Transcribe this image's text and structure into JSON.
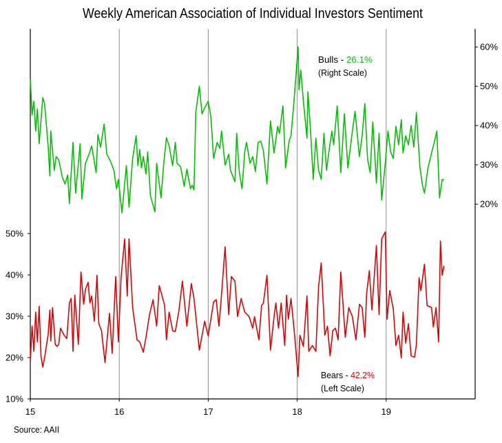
{
  "chart_data": {
    "type": "line",
    "title": "Weekly American Association of Individual  Investors Sentiment",
    "source": "Source: AAII",
    "grid": "vertical lines at each year",
    "x_axis": {
      "range": [
        15,
        20
      ],
      "ticks": [
        "15",
        "16",
        "17",
        "18",
        "19"
      ]
    },
    "y_axis_left": {
      "range": [
        10,
        99.5
      ],
      "ticks": [
        "10%",
        "20%",
        "30%",
        "40%",
        "50%"
      ],
      "tick_values": [
        10,
        20,
        30,
        40,
        50
      ]
    },
    "y_axis_right": {
      "range": [
        -29.6,
        64.6
      ],
      "ticks": [
        "20%",
        "30%",
        "40%",
        "50%",
        "60%"
      ],
      "tick_values": [
        20,
        30,
        40,
        50,
        60
      ]
    },
    "series": [
      {
        "name": "Bulls",
        "label": "Bulls - ",
        "latest": "26.1%",
        "scale_note": "(Right Scale)",
        "axis": "right",
        "color": "#00c000",
        "points": [
          [
            15.0,
            51.8
          ],
          [
            15.02,
            42.7
          ],
          [
            15.04,
            46.2
          ],
          [
            15.06,
            38.6
          ],
          [
            15.08,
            44.2
          ],
          [
            15.1,
            35.4
          ],
          [
            15.14,
            47.1
          ],
          [
            15.16,
            45.6
          ],
          [
            15.2,
            35.1
          ],
          [
            15.22,
            27.2
          ],
          [
            15.23,
            38.6
          ],
          [
            15.27,
            28.6
          ],
          [
            15.29,
            32.1
          ],
          [
            15.32,
            31.3
          ],
          [
            15.36,
            26.9
          ],
          [
            15.39,
            25.1
          ],
          [
            15.42,
            27.4
          ],
          [
            15.44,
            20.1
          ],
          [
            15.48,
            35.7
          ],
          [
            15.51,
            22.8
          ],
          [
            15.56,
            35.4
          ],
          [
            15.58,
            21.3
          ],
          [
            15.62,
            30.4
          ],
          [
            15.66,
            32.7
          ],
          [
            15.69,
            34.8
          ],
          [
            15.74,
            28.0
          ],
          [
            15.76,
            37.7
          ],
          [
            15.79,
            34.5
          ],
          [
            15.83,
            40.4
          ],
          [
            15.86,
            32.7
          ],
          [
            15.9,
            31.0
          ],
          [
            15.94,
            28.6
          ],
          [
            15.97,
            23.9
          ],
          [
            15.99,
            26.3
          ],
          [
            16.03,
            17.8
          ],
          [
            16.08,
            29.8
          ],
          [
            16.11,
            19.2
          ],
          [
            16.15,
            31.6
          ],
          [
            16.19,
            37.4
          ],
          [
            16.21,
            29.8
          ],
          [
            16.23,
            33.9
          ],
          [
            16.25,
            29.2
          ],
          [
            16.27,
            32.1
          ],
          [
            16.3,
            27.7
          ],
          [
            16.32,
            33.3
          ],
          [
            16.35,
            22.2
          ],
          [
            16.4,
            18.0
          ],
          [
            16.42,
            30.4
          ],
          [
            16.47,
            21.6
          ],
          [
            16.5,
            30.4
          ],
          [
            16.53,
            36.9
          ],
          [
            16.56,
            34.8
          ],
          [
            16.6,
            29.8
          ],
          [
            16.63,
            35.7
          ],
          [
            16.65,
            30.4
          ],
          [
            16.69,
            29.5
          ],
          [
            16.73,
            24.5
          ],
          [
            16.76,
            28.9
          ],
          [
            16.8,
            23.9
          ],
          [
            16.82,
            24.8
          ],
          [
            16.84,
            23.6
          ],
          [
            16.86,
            43.3
          ],
          [
            16.9,
            50.0
          ],
          [
            16.93,
            43.0
          ],
          [
            16.96,
            44.5
          ],
          [
            17.0,
            46.2
          ],
          [
            17.03,
            42.1
          ],
          [
            17.06,
            31.6
          ],
          [
            17.1,
            35.7
          ],
          [
            17.13,
            34.2
          ],
          [
            17.15,
            38.6
          ],
          [
            17.19,
            29.9
          ],
          [
            17.23,
            32.7
          ],
          [
            17.25,
            28.6
          ],
          [
            17.3,
            25.7
          ],
          [
            17.32,
            38.0
          ],
          [
            17.35,
            28.0
          ],
          [
            17.38,
            23.9
          ],
          [
            17.41,
            33.3
          ],
          [
            17.43,
            35.7
          ],
          [
            17.47,
            30.4
          ],
          [
            17.5,
            32.1
          ],
          [
            17.53,
            28.3
          ],
          [
            17.56,
            35.7
          ],
          [
            17.59,
            36.0
          ],
          [
            17.62,
            33.6
          ],
          [
            17.66,
            25.1
          ],
          [
            17.7,
            41.2
          ],
          [
            17.74,
            33.0
          ],
          [
            17.78,
            39.8
          ],
          [
            17.8,
            38.0
          ],
          [
            17.84,
            45.0
          ],
          [
            17.87,
            29.2
          ],
          [
            17.91,
            36.2
          ],
          [
            17.93,
            37.4
          ],
          [
            17.96,
            45.0
          ],
          [
            18.01,
            60.0
          ],
          [
            18.02,
            49.1
          ],
          [
            18.04,
            54.1
          ],
          [
            18.07,
            46.2
          ],
          [
            18.11,
            36.8
          ],
          [
            18.12,
            48.6
          ],
          [
            18.15,
            38.6
          ],
          [
            18.18,
            26.3
          ],
          [
            18.21,
            36.8
          ],
          [
            18.24,
            28.6
          ],
          [
            18.27,
            26.3
          ],
          [
            18.3,
            38.0
          ],
          [
            18.33,
            28.6
          ],
          [
            18.36,
            33.9
          ],
          [
            18.39,
            38.6
          ],
          [
            18.41,
            35.1
          ],
          [
            18.45,
            45.0
          ],
          [
            18.49,
            28.0
          ],
          [
            18.53,
            43.0
          ],
          [
            18.57,
            29.2
          ],
          [
            18.61,
            36.8
          ],
          [
            18.65,
            43.6
          ],
          [
            18.7,
            32.1
          ],
          [
            18.73,
            37.4
          ],
          [
            18.76,
            45.6
          ],
          [
            18.79,
            31.6
          ],
          [
            18.82,
            28.0
          ],
          [
            18.85,
            40.9
          ],
          [
            18.89,
            25.4
          ],
          [
            18.92,
            38.0
          ],
          [
            18.95,
            21.0
          ],
          [
            18.99,
            30.4
          ],
          [
            19.02,
            38.6
          ],
          [
            19.05,
            33.3
          ],
          [
            19.08,
            31.6
          ],
          [
            19.11,
            39.8
          ],
          [
            19.14,
            35.1
          ],
          [
            19.17,
            41.5
          ],
          [
            19.19,
            33.0
          ],
          [
            19.22,
            37.4
          ],
          [
            19.25,
            35.1
          ],
          [
            19.28,
            40.0
          ],
          [
            19.31,
            34.5
          ],
          [
            19.34,
            43.3
          ],
          [
            19.38,
            29.2
          ],
          [
            19.41,
            24.5
          ],
          [
            19.43,
            22.8
          ],
          [
            19.47,
            29.2
          ],
          [
            19.51,
            33.0
          ],
          [
            19.54,
            35.7
          ],
          [
            19.57,
            38.6
          ],
          [
            19.6,
            21.6
          ],
          [
            19.63,
            26.3
          ],
          [
            19.65,
            26.1
          ]
        ]
      },
      {
        "name": "Bears",
        "label": "Bears - ",
        "latest": "42.2%",
        "scale_note": "(Left Scale)",
        "axis": "left",
        "color": "#e00000",
        "points": [
          [
            15.0,
            19.3
          ],
          [
            15.02,
            27.6
          ],
          [
            15.04,
            21.5
          ],
          [
            15.06,
            31.0
          ],
          [
            15.08,
            23.8
          ],
          [
            15.1,
            32.4
          ],
          [
            15.12,
            20.4
          ],
          [
            15.14,
            17.7
          ],
          [
            15.16,
            19.9
          ],
          [
            15.2,
            25.4
          ],
          [
            15.22,
            31.5
          ],
          [
            15.23,
            24.0
          ],
          [
            15.25,
            32.1
          ],
          [
            15.28,
            23.2
          ],
          [
            15.3,
            22.7
          ],
          [
            15.32,
            23.2
          ],
          [
            15.34,
            27.1
          ],
          [
            15.38,
            25.4
          ],
          [
            15.41,
            24.6
          ],
          [
            15.44,
            33.2
          ],
          [
            15.46,
            34.3
          ],
          [
            15.48,
            21.5
          ],
          [
            15.5,
            35.1
          ],
          [
            15.54,
            23.2
          ],
          [
            15.57,
            40.7
          ],
          [
            15.6,
            32.9
          ],
          [
            15.62,
            36.5
          ],
          [
            15.65,
            38.2
          ],
          [
            15.67,
            33.2
          ],
          [
            15.69,
            34.9
          ],
          [
            15.72,
            28.8
          ],
          [
            15.75,
            39.9
          ],
          [
            15.77,
            28.2
          ],
          [
            15.8,
            26.5
          ],
          [
            15.84,
            18.8
          ],
          [
            15.89,
            30.7
          ],
          [
            15.92,
            21.0
          ],
          [
            15.96,
            39.6
          ],
          [
            15.99,
            23.8
          ],
          [
            16.02,
            39.3
          ],
          [
            16.06,
            48.7
          ],
          [
            16.09,
            34.9
          ],
          [
            16.11,
            48.7
          ],
          [
            16.15,
            32.1
          ],
          [
            16.2,
            24.3
          ],
          [
            16.23,
            23.8
          ],
          [
            16.27,
            21.3
          ],
          [
            16.3,
            24.9
          ],
          [
            16.34,
            30.4
          ],
          [
            16.38,
            34.0
          ],
          [
            16.42,
            27.6
          ],
          [
            16.45,
            37.4
          ],
          [
            16.51,
            32.6
          ],
          [
            16.53,
            24.3
          ],
          [
            16.56,
            31.0
          ],
          [
            16.6,
            26.5
          ],
          [
            16.63,
            26.3
          ],
          [
            16.67,
            31.3
          ],
          [
            16.71,
            38.5
          ],
          [
            16.76,
            27.6
          ],
          [
            16.81,
            37.9
          ],
          [
            16.84,
            34.3
          ],
          [
            16.9,
            21.8
          ],
          [
            16.96,
            28.8
          ],
          [
            17.0,
            25.2
          ],
          [
            17.06,
            33.5
          ],
          [
            17.09,
            34.0
          ],
          [
            17.12,
            27.6
          ],
          [
            17.14,
            32.6
          ],
          [
            17.19,
            46.8
          ],
          [
            17.23,
            30.4
          ],
          [
            17.26,
            39.6
          ],
          [
            17.3,
            38.5
          ],
          [
            17.33,
            29.9
          ],
          [
            17.37,
            34.3
          ],
          [
            17.41,
            31.0
          ],
          [
            17.46,
            29.9
          ],
          [
            17.5,
            27.1
          ],
          [
            17.52,
            29.9
          ],
          [
            17.57,
            24.3
          ],
          [
            17.6,
            32.6
          ],
          [
            17.62,
            33.2
          ],
          [
            17.66,
            39.9
          ],
          [
            17.7,
            21.8
          ],
          [
            17.74,
            29.9
          ],
          [
            17.76,
            33.2
          ],
          [
            17.79,
            27.1
          ],
          [
            17.82,
            33.2
          ],
          [
            17.86,
            22.9
          ],
          [
            17.88,
            35.1
          ],
          [
            17.9,
            29.3
          ],
          [
            17.93,
            34.3
          ],
          [
            17.97,
            25.7
          ],
          [
            18.01,
            15.4
          ],
          [
            18.03,
            25.4
          ],
          [
            18.07,
            22.7
          ],
          [
            18.11,
            34.9
          ],
          [
            18.13,
            21.5
          ],
          [
            18.17,
            22.9
          ],
          [
            18.21,
            21.5
          ],
          [
            18.24,
            37.1
          ],
          [
            18.27,
            42.9
          ],
          [
            18.31,
            25.4
          ],
          [
            18.34,
            27.6
          ],
          [
            18.37,
            20.4
          ],
          [
            18.4,
            26.5
          ],
          [
            18.43,
            27.1
          ],
          [
            18.46,
            24.3
          ],
          [
            18.49,
            40.7
          ],
          [
            18.54,
            24.9
          ],
          [
            18.58,
            32.1
          ],
          [
            18.62,
            29.9
          ],
          [
            18.66,
            24.3
          ],
          [
            18.7,
            32.9
          ],
          [
            18.73,
            32.1
          ],
          [
            18.76,
            24.9
          ],
          [
            18.78,
            35.4
          ],
          [
            18.81,
            41.0
          ],
          [
            18.84,
            31.5
          ],
          [
            18.89,
            47.1
          ],
          [
            18.92,
            30.4
          ],
          [
            18.95,
            48.7
          ],
          [
            18.99,
            50.4
          ],
          [
            19.01,
            29.3
          ],
          [
            19.04,
            36.2
          ],
          [
            19.08,
            31.8
          ],
          [
            19.11,
            22.9
          ],
          [
            19.14,
            25.4
          ],
          [
            19.17,
            19.9
          ],
          [
            19.19,
            31.0
          ],
          [
            19.22,
            23.5
          ],
          [
            19.25,
            28.2
          ],
          [
            19.28,
            20.4
          ],
          [
            19.32,
            20.1
          ],
          [
            19.34,
            23.2
          ],
          [
            19.37,
            39.3
          ],
          [
            19.39,
            36.2
          ],
          [
            19.43,
            42.6
          ],
          [
            19.46,
            32.6
          ],
          [
            19.51,
            32.1
          ],
          [
            19.53,
            27.4
          ],
          [
            19.56,
            32.1
          ],
          [
            19.59,
            23.8
          ],
          [
            19.61,
            48.2
          ],
          [
            19.63,
            39.9
          ],
          [
            19.65,
            42.2
          ]
        ]
      }
    ]
  }
}
